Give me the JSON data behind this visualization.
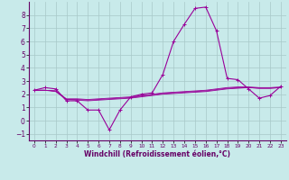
{
  "xlabel": "Windchill (Refroidissement éolien,°C)",
  "bg_color": "#c8eaea",
  "grid_color": "#a8c8c8",
  "line_color": "#990099",
  "xlim": [
    -0.5,
    23.5
  ],
  "ylim": [
    -1.5,
    9.0
  ],
  "yticks": [
    -1,
    0,
    1,
    2,
    3,
    4,
    5,
    6,
    7,
    8
  ],
  "xticks": [
    0,
    1,
    2,
    3,
    4,
    5,
    6,
    7,
    8,
    9,
    10,
    11,
    12,
    13,
    14,
    15,
    16,
    17,
    18,
    19,
    20,
    21,
    22,
    23
  ],
  "series": [
    [
      2.3,
      2.5,
      2.4,
      1.5,
      1.5,
      0.8,
      0.8,
      -0.7,
      0.8,
      1.8,
      2.0,
      2.1,
      3.5,
      6.0,
      7.3,
      8.5,
      8.6,
      6.8,
      3.2,
      3.1,
      2.4,
      1.7,
      1.9,
      2.6
    ],
    [
      2.3,
      2.3,
      2.2,
      1.6,
      1.55,
      1.5,
      1.55,
      1.6,
      1.65,
      1.7,
      1.8,
      1.9,
      2.0,
      2.05,
      2.1,
      2.15,
      2.2,
      2.3,
      2.4,
      2.45,
      2.5,
      2.45,
      2.45,
      2.5
    ],
    [
      2.3,
      2.3,
      2.25,
      1.6,
      1.6,
      1.55,
      1.6,
      1.65,
      1.7,
      1.75,
      1.85,
      1.95,
      2.05,
      2.1,
      2.15,
      2.2,
      2.25,
      2.35,
      2.45,
      2.5,
      2.5,
      2.45,
      2.45,
      2.5
    ],
    [
      2.3,
      2.3,
      2.25,
      1.65,
      1.65,
      1.6,
      1.65,
      1.7,
      1.75,
      1.8,
      1.9,
      2.0,
      2.1,
      2.15,
      2.2,
      2.25,
      2.3,
      2.4,
      2.5,
      2.55,
      2.55,
      2.5,
      2.5,
      2.55
    ]
  ]
}
